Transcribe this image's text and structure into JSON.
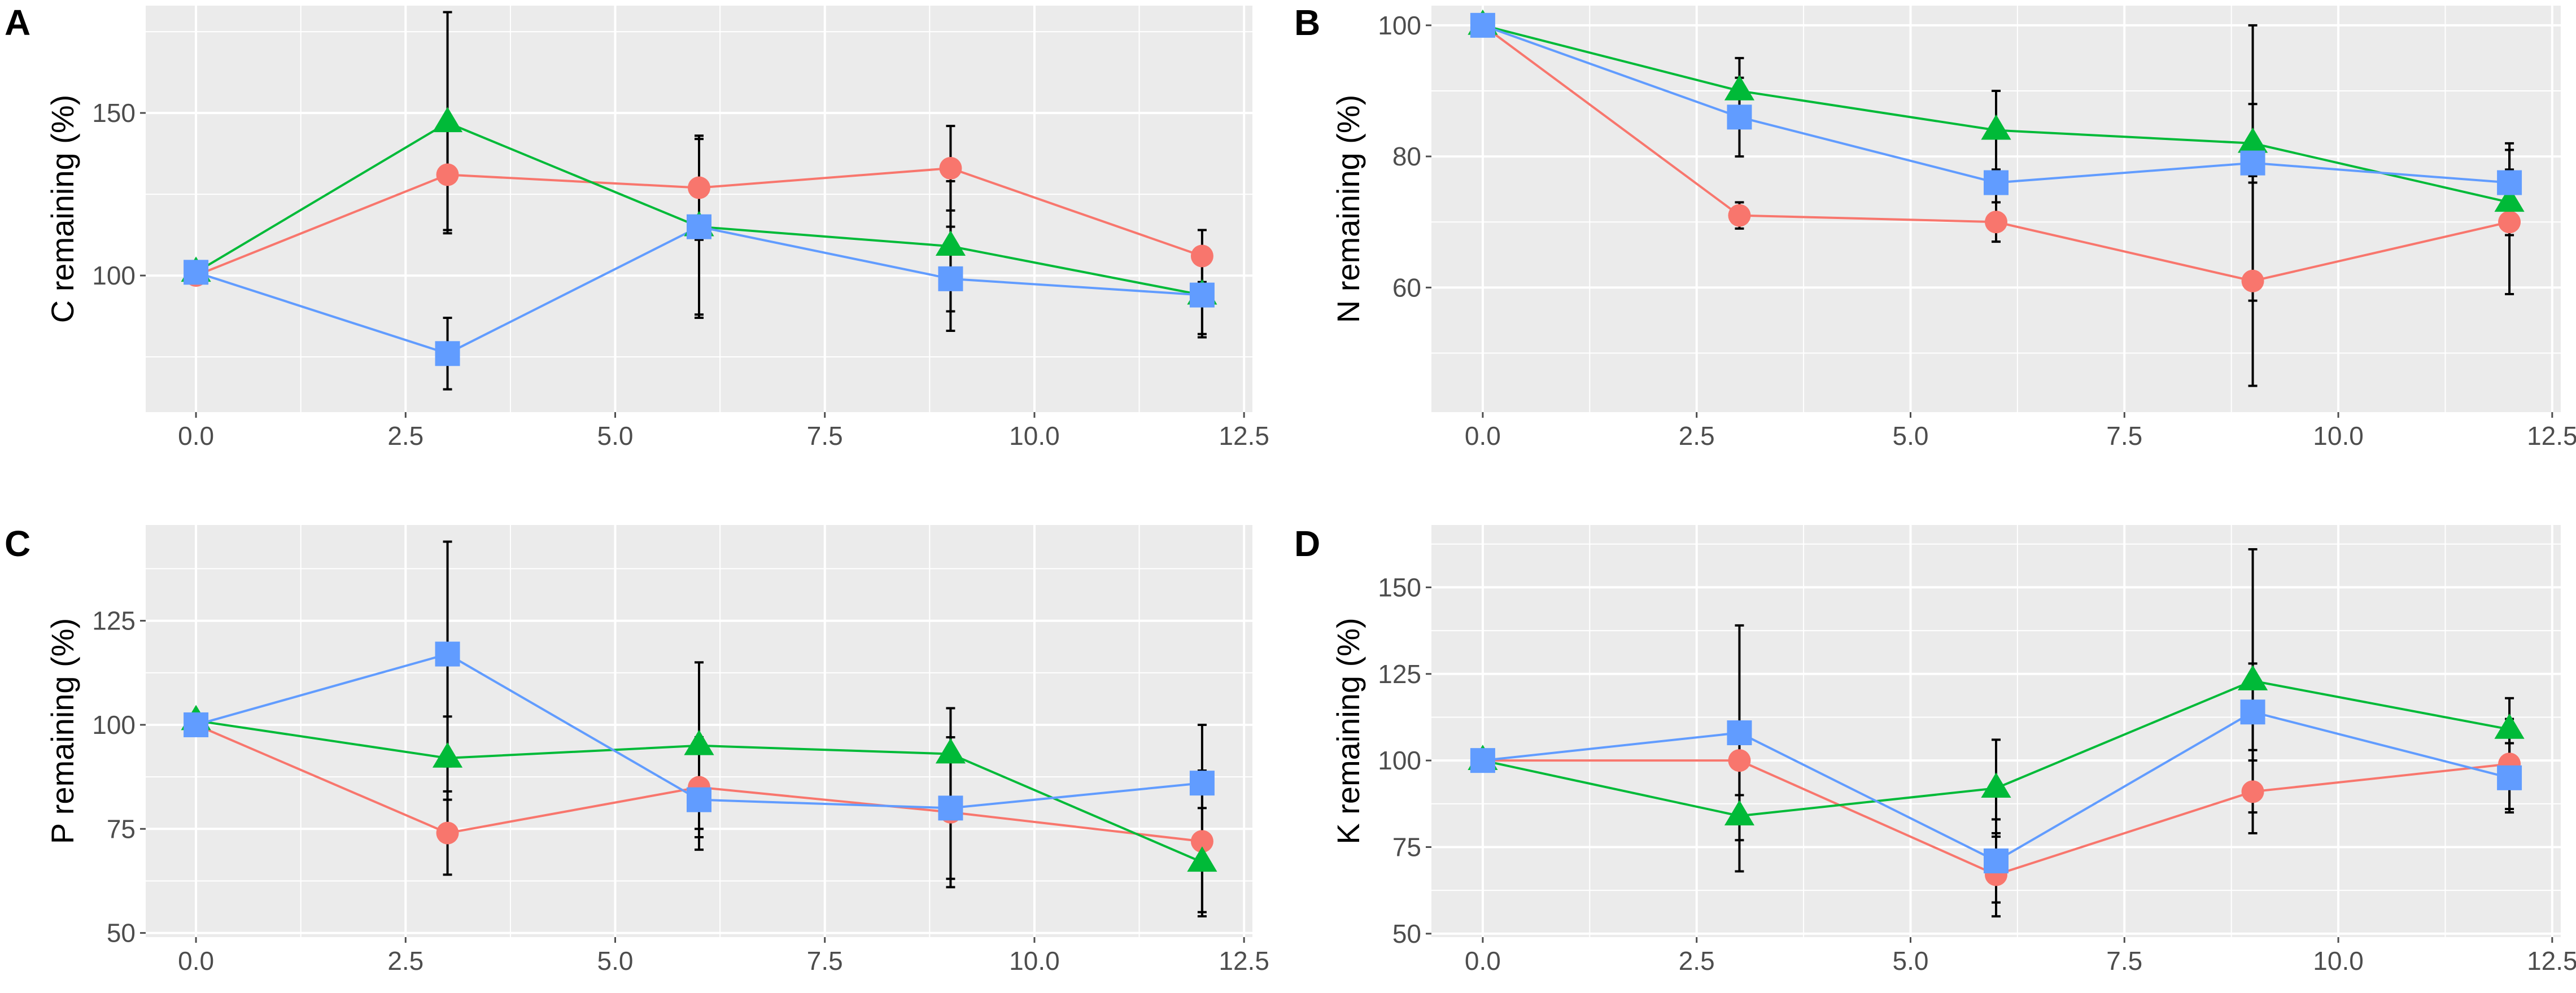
{
  "figure": {
    "background": "#ffffff",
    "panel_background": "#ebebeb",
    "grid_color": "#ffffff",
    "tick_color": "#4d4d4d"
  },
  "series_styles": [
    {
      "name": "red",
      "color": "#f8766d",
      "marker": "circle"
    },
    {
      "name": "green",
      "color": "#00ba38",
      "marker": "triangle"
    },
    {
      "name": "blue",
      "color": "#619cff",
      "marker": "square"
    }
  ],
  "chart_data": [
    {
      "type": "line",
      "panel": "A",
      "title": "",
      "xlabel": "",
      "ylabel": "C remaining (%)",
      "x": [
        0,
        3,
        6,
        9,
        12
      ],
      "xlim": [
        -0.6,
        12.6
      ],
      "ylim": [
        58,
        183
      ],
      "xticks": [
        "0.0",
        "2.5",
        "5.0",
        "7.5",
        "10.0",
        "12.5"
      ],
      "yticks": [
        "100",
        "150"
      ],
      "series": [
        {
          "name": "red",
          "values": [
            100,
            131,
            127,
            133,
            106
          ],
          "errors": [
            0,
            17,
            16,
            13,
            8
          ]
        },
        {
          "name": "green",
          "values": [
            101,
            147,
            115,
            109,
            94
          ],
          "errors": [
            0,
            34,
            28,
            20,
            13
          ]
        },
        {
          "name": "blue",
          "values": [
            101,
            76,
            115,
            99,
            94
          ],
          "errors": [
            0,
            11,
            27,
            16,
            12
          ]
        }
      ]
    },
    {
      "type": "line",
      "panel": "B",
      "title": "",
      "xlabel": "",
      "ylabel": "N remaining (%)",
      "x": [
        0,
        3,
        6,
        9,
        12
      ],
      "xlim": [
        -0.6,
        12.6
      ],
      "ylim": [
        41,
        103
      ],
      "xticks": [
        "0.0",
        "2.5",
        "5.0",
        "7.5",
        "10.0",
        "12.5"
      ],
      "yticks": [
        "60",
        "80",
        "100"
      ],
      "series": [
        {
          "name": "red",
          "values": [
            100,
            71,
            70,
            61,
            70
          ],
          "errors": [
            0,
            2,
            3,
            16,
            11
          ]
        },
        {
          "name": "green",
          "values": [
            100,
            90,
            84,
            82,
            73
          ],
          "errors": [
            0,
            5,
            6,
            6,
            5
          ]
        },
        {
          "name": "blue",
          "values": [
            100,
            86,
            76,
            79,
            76
          ],
          "errors": [
            0,
            6,
            9,
            21,
            6
          ]
        }
      ]
    },
    {
      "type": "line",
      "panel": "C",
      "title": "",
      "xlabel": "",
      "ylabel": "P remaining (%)",
      "x": [
        0,
        3,
        6,
        9,
        12
      ],
      "xlim": [
        -0.6,
        12.6
      ],
      "ylim": [
        49,
        148
      ],
      "xticks": [
        "0.0",
        "2.5",
        "5.0",
        "7.5",
        "10.0",
        "12.5"
      ],
      "yticks": [
        "50",
        "75",
        "100",
        "125"
      ],
      "series": [
        {
          "name": "red",
          "values": [
            100,
            74,
            85,
            79,
            72
          ],
          "errors": [
            0,
            10,
            12,
            18,
            17
          ]
        },
        {
          "name": "green",
          "values": [
            101,
            92,
            95,
            93,
            67
          ],
          "errors": [
            0,
            10,
            20,
            11,
            13
          ]
        },
        {
          "name": "blue",
          "values": [
            100,
            117,
            82,
            80,
            86
          ],
          "errors": [
            0,
            27,
            12,
            17,
            14
          ]
        }
      ]
    },
    {
      "type": "line",
      "panel": "D",
      "title": "",
      "xlabel": "",
      "ylabel": "K remaining (%)",
      "x": [
        0,
        3,
        6,
        9,
        12
      ],
      "xlim": [
        -0.6,
        12.6
      ],
      "ylim": [
        49,
        168
      ],
      "xticks": [
        "0.0",
        "2.5",
        "5.0",
        "7.5",
        "10.0",
        "12.5"
      ],
      "yticks": [
        "50",
        "75",
        "100",
        "125",
        "150"
      ],
      "series": [
        {
          "name": "red",
          "values": [
            100,
            100,
            67,
            91,
            99
          ],
          "errors": [
            0,
            10,
            12,
            12,
            13
          ]
        },
        {
          "name": "green",
          "values": [
            100,
            84,
            92,
            123,
            109
          ],
          "errors": [
            0,
            16,
            14,
            38,
            9
          ]
        },
        {
          "name": "blue",
          "values": [
            100,
            108,
            71,
            114,
            95
          ],
          "errors": [
            0,
            31,
            12,
            14,
            10
          ]
        }
      ]
    }
  ]
}
